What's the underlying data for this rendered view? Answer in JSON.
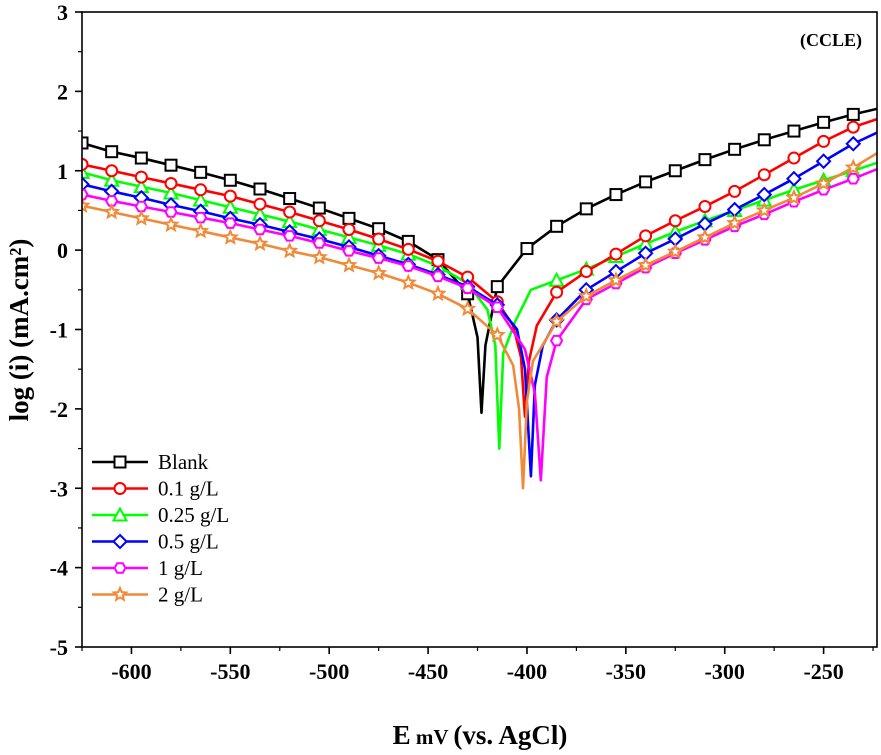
{
  "chart_data": {
    "type": "line",
    "annotation": "(CCLE)",
    "xlabel_main": "E",
    "xlabel_unit": " mV ",
    "xlabel_ref": "(vs. AgCl)",
    "ylabel": "log (i) (mA.cm²)",
    "xlim": [
      -625,
      -223
    ],
    "ylim": [
      -5,
      3
    ],
    "xticks": [
      -600,
      -550,
      -500,
      -450,
      -400,
      -350,
      -300,
      -250
    ],
    "yticks": [
      -5,
      -4,
      -3,
      -2,
      -1,
      0,
      1,
      2,
      3
    ],
    "legend_position": "bottom-left",
    "grid": false,
    "series": [
      {
        "name": "Blank",
        "color": "#000000",
        "marker": "square",
        "ecorr": -423,
        "icorr_log": -2.05,
        "x": [
          -625,
          -610,
          -595,
          -580,
          -565,
          -550,
          -535,
          -520,
          -505,
          -490,
          -475,
          -460,
          -445,
          -430,
          -425,
          -423,
          -421,
          -415,
          -400,
          -385,
          -370,
          -355,
          -340,
          -325,
          -310,
          -295,
          -280,
          -265,
          -250,
          -235,
          -223
        ],
        "y": [
          1.35,
          1.24,
          1.16,
          1.07,
          0.98,
          0.88,
          0.77,
          0.65,
          0.53,
          0.4,
          0.27,
          0.11,
          -0.12,
          -0.55,
          -1.1,
          -2.05,
          -1.2,
          -0.46,
          0.02,
          0.3,
          0.52,
          0.7,
          0.86,
          1.0,
          1.14,
          1.27,
          1.39,
          1.5,
          1.61,
          1.71,
          1.78
        ]
      },
      {
        "name": "0.1 g/L",
        "color": "#ff0000",
        "marker": "circle",
        "ecorr": -401,
        "icorr_log": -2.1,
        "x": [
          -625,
          -610,
          -595,
          -580,
          -565,
          -550,
          -535,
          -520,
          -505,
          -490,
          -475,
          -460,
          -445,
          -430,
          -415,
          -407,
          -403,
          -401,
          -399,
          -395,
          -385,
          -370,
          -355,
          -340,
          -325,
          -310,
          -295,
          -280,
          -265,
          -250,
          -235,
          -223
        ],
        "y": [
          1.08,
          1.0,
          0.92,
          0.84,
          0.76,
          0.68,
          0.58,
          0.48,
          0.37,
          0.26,
          0.14,
          0.01,
          -0.14,
          -0.34,
          -0.65,
          -0.95,
          -1.35,
          -2.1,
          -1.4,
          -0.95,
          -0.53,
          -0.27,
          -0.05,
          0.18,
          0.37,
          0.55,
          0.74,
          0.95,
          1.16,
          1.37,
          1.55,
          1.65
        ]
      },
      {
        "name": "0.25 g/L",
        "color": "#00ff00",
        "marker": "triangle",
        "ecorr": -414,
        "icorr_log": -2.5,
        "x": [
          -625,
          -610,
          -595,
          -580,
          -565,
          -550,
          -535,
          -520,
          -505,
          -490,
          -475,
          -460,
          -445,
          -430,
          -420,
          -416,
          -414,
          -412,
          -406,
          -398,
          -385,
          -370,
          -355,
          -340,
          -325,
          -310,
          -295,
          -280,
          -265,
          -250,
          -235,
          -223
        ],
        "y": [
          0.98,
          0.88,
          0.8,
          0.72,
          0.63,
          0.54,
          0.45,
          0.36,
          0.26,
          0.16,
          0.06,
          -0.05,
          -0.2,
          -0.42,
          -0.75,
          -1.2,
          -2.5,
          -1.3,
          -0.9,
          -0.5,
          -0.38,
          -0.24,
          -0.08,
          0.08,
          0.23,
          0.37,
          0.5,
          0.63,
          0.76,
          0.88,
          1.0,
          1.1
        ]
      },
      {
        "name": "0.5 g/L",
        "color": "#0000ff",
        "marker": "diamond",
        "ecorr": -398,
        "icorr_log": -2.85,
        "x": [
          -625,
          -610,
          -595,
          -580,
          -565,
          -550,
          -535,
          -520,
          -505,
          -490,
          -475,
          -460,
          -445,
          -430,
          -415,
          -405,
          -401,
          -398,
          -396,
          -392,
          -385,
          -370,
          -355,
          -340,
          -325,
          -310,
          -295,
          -280,
          -265,
          -250,
          -235,
          -223
        ],
        "y": [
          0.83,
          0.74,
          0.66,
          0.57,
          0.49,
          0.4,
          0.32,
          0.23,
          0.14,
          0.04,
          -0.07,
          -0.18,
          -0.31,
          -0.46,
          -0.69,
          -1.0,
          -1.5,
          -2.85,
          -1.7,
          -1.2,
          -0.88,
          -0.5,
          -0.27,
          -0.04,
          0.14,
          0.33,
          0.51,
          0.7,
          0.9,
          1.12,
          1.34,
          1.48
        ]
      },
      {
        "name": "1 g/L",
        "color": "#ff00ff",
        "marker": "hexagon",
        "ecorr": -393,
        "icorr_log": -2.9,
        "x": [
          -625,
          -610,
          -595,
          -580,
          -565,
          -550,
          -535,
          -520,
          -505,
          -490,
          -475,
          -460,
          -445,
          -430,
          -415,
          -401,
          -396,
          -393,
          -390,
          -385,
          -370,
          -355,
          -340,
          -325,
          -310,
          -295,
          -280,
          -265,
          -250,
          -235,
          -223
        ],
        "y": [
          0.7,
          0.62,
          0.55,
          0.48,
          0.41,
          0.34,
          0.26,
          0.18,
          0.09,
          -0.01,
          -0.1,
          -0.2,
          -0.33,
          -0.48,
          -0.72,
          -1.25,
          -1.8,
          -2.9,
          -1.6,
          -1.14,
          -0.62,
          -0.42,
          -0.22,
          -0.04,
          0.13,
          0.3,
          0.45,
          0.61,
          0.76,
          0.9,
          1.02
        ]
      },
      {
        "name": "2 g/L",
        "color": "#f08a38",
        "marker": "star",
        "ecorr": -402,
        "icorr_log": -3.0,
        "x": [
          -625,
          -610,
          -595,
          -580,
          -565,
          -550,
          -535,
          -520,
          -505,
          -490,
          -475,
          -460,
          -445,
          -430,
          -415,
          -407,
          -404,
          -402,
          -400,
          -397,
          -385,
          -370,
          -355,
          -340,
          -325,
          -310,
          -295,
          -280,
          -265,
          -250,
          -235,
          -223
        ],
        "y": [
          0.56,
          0.48,
          0.4,
          0.32,
          0.24,
          0.16,
          0.08,
          -0.01,
          -0.09,
          -0.19,
          -0.29,
          -0.41,
          -0.55,
          -0.74,
          -1.07,
          -1.45,
          -2.0,
          -3.0,
          -1.9,
          -1.4,
          -0.9,
          -0.58,
          -0.38,
          -0.19,
          -0.02,
          0.16,
          0.34,
          0.5,
          0.66,
          0.84,
          1.04,
          1.22
        ]
      }
    ]
  }
}
